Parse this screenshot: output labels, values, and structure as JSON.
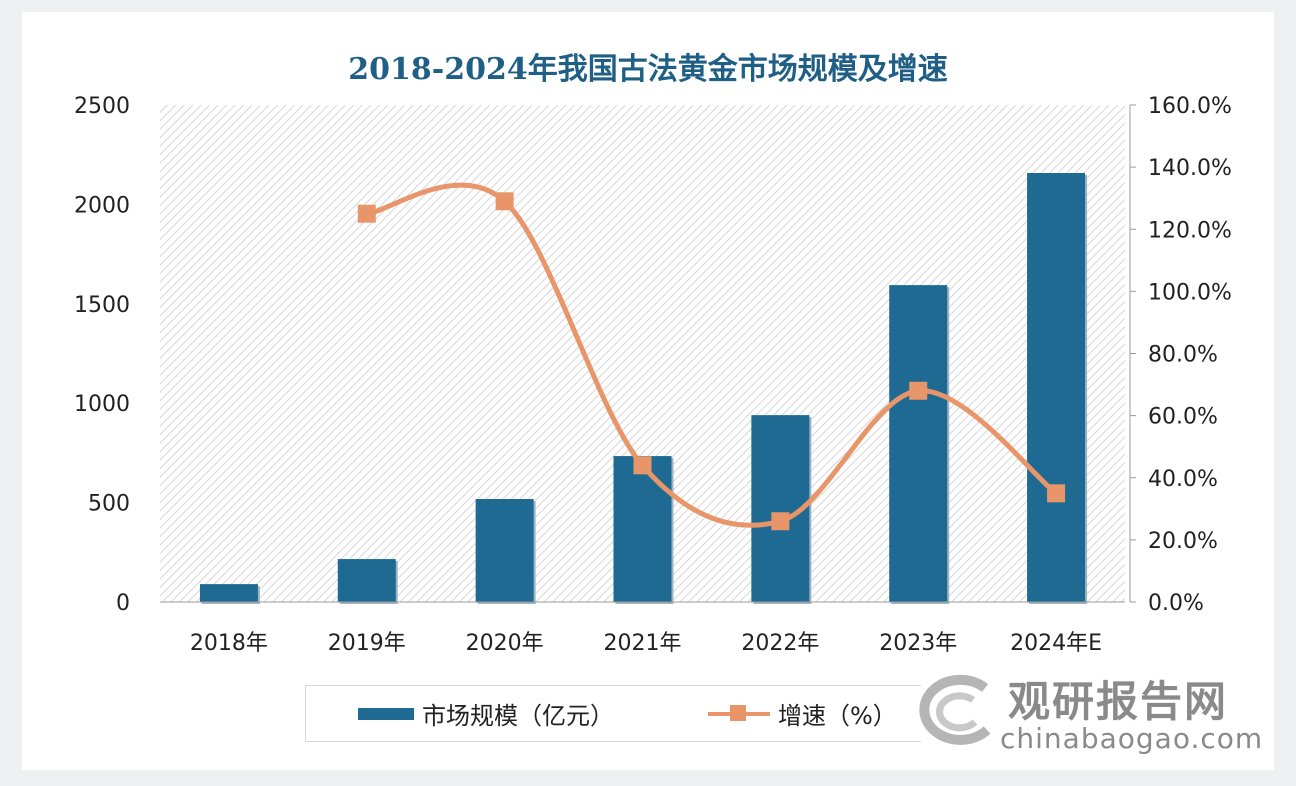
{
  "chart_data": {
    "type": "bar",
    "title": "2018-2024年我国古法黄金市场规模及增速",
    "categories": [
      "2018年",
      "2019年",
      "2020年",
      "2021年",
      "2022年",
      "2023年",
      "2024年E"
    ],
    "series": [
      {
        "name": "市场规模（亿元）",
        "type": "bar",
        "axis": "left",
        "values": [
          90,
          216,
          518,
          734,
          940,
          1594,
          2158
        ],
        "color": "#1e6a93"
      },
      {
        "name": "增速（%）",
        "type": "line",
        "axis": "right",
        "values": [
          null,
          125,
          129,
          44,
          26,
          68,
          35
        ],
        "color": "#e8956a"
      }
    ],
    "ylim": [
      0,
      2500
    ],
    "yticks": [
      "0",
      "500",
      "1000",
      "1500",
      "2000",
      "2500"
    ],
    "y2lim": [
      0,
      160
    ],
    "y2ticks": [
      "0.0%",
      "20.0%",
      "40.0%",
      "60.0%",
      "80.0%",
      "100.0%",
      "120.0%",
      "140.0%",
      "160.0%"
    ],
    "legend": "bottom",
    "grid": false
  },
  "watermark": {
    "cn": "观研报告网",
    "en": "chinabaogao.com"
  }
}
